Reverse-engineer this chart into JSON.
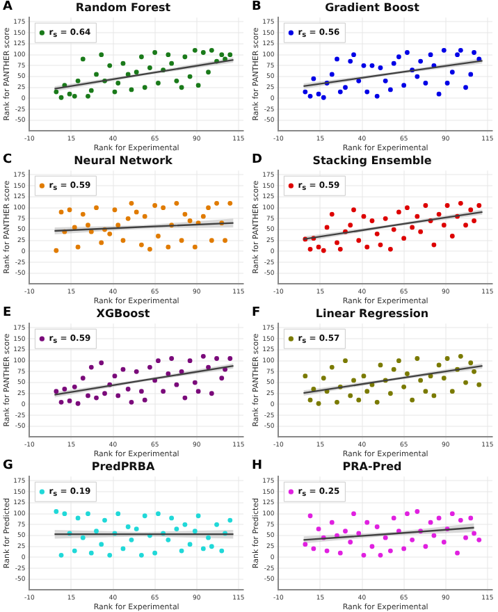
{
  "chart_data": [
    {
      "type": "scatter",
      "title": "Random Forest",
      "annotations": [
        "A"
      ],
      "xlabel": "Rank for Experimental",
      "ylabel": "Rank for PANTHER score",
      "xlim": [
        -10,
        118
      ],
      "ylim": [
        -74,
        185
      ],
      "xticks": [
        -10,
        15,
        40,
        65,
        90,
        115
      ],
      "yticks": [
        -50,
        -25,
        0,
        25,
        50,
        75,
        100,
        125,
        150,
        175
      ],
      "grid": true,
      "legend": "top left",
      "series": [
        {
          "marker": "circle",
          "name": "r$_{s}$ = 0.64",
          "color": "#1a7a1a",
          "x": [
            6,
            9,
            11,
            14,
            17,
            19,
            22,
            25,
            27,
            30,
            33,
            35,
            38,
            41,
            43,
            46,
            49,
            51,
            54,
            57,
            59,
            62,
            65,
            67,
            70,
            73,
            75,
            78,
            81,
            83,
            86,
            89,
            91,
            94,
            97,
            99,
            102,
            105,
            107,
            110
          ],
          "values": [
            15,
            2,
            30,
            10,
            5,
            40,
            90,
            5,
            18,
            55,
            100,
            40,
            75,
            15,
            35,
            80,
            55,
            20,
            60,
            95,
            25,
            70,
            105,
            35,
            65,
            100,
            80,
            40,
            25,
            95,
            50,
            110,
            30,
            105,
            60,
            110,
            85,
            100,
            90,
            100
          ]
        },
        {
          "type": "line",
          "color": "#404040",
          "x": [
            5,
            58,
            112
          ],
          "values": [
            22,
            55,
            88
          ],
          "lower": [
            16,
            52,
            82
          ],
          "upper": [
            28,
            58,
            94
          ]
        }
      ]
    },
    {
      "type": "scatter",
      "title": "Gradient Boost",
      "annotations": [
        "B"
      ],
      "xlabel": "Rank for Experimental",
      "ylabel": "Rank for PANTHER score",
      "xlim": [
        -10,
        118
      ],
      "ylim": [
        -74,
        185
      ],
      "xticks": [
        -10,
        15,
        40,
        65,
        90,
        115
      ],
      "yticks": [
        -50,
        -25,
        0,
        25,
        50,
        75,
        100,
        125,
        150,
        175
      ],
      "grid": true,
      "legend": "top left",
      "series": [
        {
          "marker": "circle",
          "name": "r$_{s}$ = 0.56",
          "color": "#0000e6",
          "x": [
            6,
            9,
            11,
            14,
            17,
            19,
            22,
            25,
            27,
            30,
            33,
            35,
            38,
            41,
            43,
            46,
            49,
            51,
            54,
            57,
            59,
            62,
            65,
            67,
            70,
            73,
            75,
            78,
            81,
            83,
            86,
            89,
            91,
            94,
            97,
            99,
            102,
            105,
            107,
            110
          ],
          "values": [
            15,
            5,
            45,
            10,
            2,
            35,
            55,
            90,
            15,
            25,
            85,
            100,
            40,
            75,
            15,
            75,
            5,
            70,
            40,
            20,
            80,
            95,
            30,
            105,
            65,
            50,
            85,
            35,
            100,
            75,
            10,
            110,
            35,
            60,
            100,
            110,
            25,
            55,
            105,
            90
          ]
        },
        {
          "type": "line",
          "color": "#404040",
          "x": [
            5,
            58,
            112
          ],
          "values": [
            28,
            57,
            86
          ],
          "lower": [
            22,
            54,
            80
          ],
          "upper": [
            34,
            60,
            92
          ]
        }
      ]
    },
    {
      "type": "scatter",
      "title": "Neural Network",
      "annotations": [
        "C"
      ],
      "xlabel": "Rank for Experimental",
      "ylabel": "Rank for PANTHER score",
      "xlim": [
        -10,
        118
      ],
      "ylim": [
        -74,
        185
      ],
      "xticks": [
        -10,
        15,
        40,
        65,
        90,
        115
      ],
      "yticks": [
        -50,
        -25,
        0,
        25,
        50,
        75,
        100,
        125,
        150,
        175
      ],
      "grid": true,
      "legend": "top left",
      "series": [
        {
          "marker": "circle",
          "name": "r$_{s}$ = 0.59",
          "color": "#e07b00",
          "x": [
            6,
            9,
            11,
            14,
            17,
            19,
            22,
            25,
            27,
            30,
            33,
            35,
            38,
            41,
            43,
            46,
            49,
            51,
            54,
            57,
            59,
            62,
            65,
            67,
            70,
            73,
            75,
            78,
            81,
            83,
            86,
            89,
            91,
            94,
            97,
            99,
            102,
            105,
            107,
            110
          ],
          "values": [
            2,
            90,
            45,
            95,
            55,
            10,
            85,
            60,
            45,
            100,
            20,
            50,
            40,
            95,
            60,
            25,
            75,
            110,
            90,
            15,
            80,
            5,
            105,
            35,
            100,
            10,
            60,
            110,
            25,
            85,
            70,
            10,
            65,
            80,
            100,
            25,
            110,
            65,
            25,
            110
          ]
        },
        {
          "type": "line",
          "color": "#404040",
          "x": [
            5,
            58,
            112
          ],
          "values": [
            47,
            56,
            65
          ],
          "lower": [
            39,
            52,
            55
          ],
          "upper": [
            55,
            60,
            75
          ]
        }
      ]
    },
    {
      "type": "scatter",
      "title": "Stacking Ensemble",
      "annotations": [
        "D"
      ],
      "xlabel": "Rank for Experimental",
      "ylabel": "Rank for PANTHER score",
      "xlim": [
        -10,
        118
      ],
      "ylim": [
        -74,
        185
      ],
      "xticks": [
        -10,
        15,
        40,
        65,
        90,
        115
      ],
      "yticks": [
        -50,
        -25,
        0,
        25,
        50,
        75,
        100,
        125,
        150,
        175
      ],
      "grid": true,
      "legend": "top left",
      "series": [
        {
          "marker": "circle",
          "name": "r$_{s}$ = 0.59",
          "color": "#dd0000",
          "x": [
            6,
            9,
            11,
            14,
            17,
            19,
            22,
            25,
            27,
            30,
            33,
            35,
            38,
            41,
            43,
            46,
            49,
            51,
            54,
            57,
            59,
            62,
            65,
            67,
            70,
            73,
            75,
            78,
            81,
            83,
            86,
            89,
            91,
            94,
            97,
            99,
            102,
            105,
            107,
            110
          ],
          "values": [
            28,
            5,
            30,
            10,
            2,
            55,
            85,
            20,
            5,
            45,
            60,
            95,
            25,
            80,
            10,
            70,
            40,
            15,
            75,
            5,
            50,
            90,
            30,
            100,
            55,
            80,
            45,
            105,
            70,
            15,
            85,
            60,
            105,
            35,
            80,
            110,
            60,
            95,
            70,
            105
          ]
        },
        {
          "type": "line",
          "color": "#404040",
          "x": [
            5,
            58,
            112
          ],
          "values": [
            28,
            59,
            90
          ],
          "lower": [
            22,
            56,
            84
          ],
          "upper": [
            34,
            62,
            96
          ]
        }
      ]
    },
    {
      "type": "scatter",
      "title": "XGBoost",
      "annotations": [
        "E"
      ],
      "xlabel": "Rank for Experimental",
      "ylabel": "Rank for PANTHER score",
      "xlim": [
        -10,
        118
      ],
      "ylim": [
        -74,
        185
      ],
      "xticks": [
        -10,
        15,
        40,
        65,
        90,
        115
      ],
      "yticks": [
        -50,
        -25,
        0,
        25,
        50,
        75,
        100,
        125,
        150,
        175
      ],
      "grid": true,
      "legend": "top left",
      "series": [
        {
          "marker": "circle",
          "name": "r$_{s}$ = 0.59",
          "color": "#7a0a7a",
          "x": [
            6,
            9,
            11,
            14,
            17,
            19,
            22,
            25,
            27,
            30,
            33,
            35,
            38,
            41,
            43,
            46,
            49,
            51,
            54,
            57,
            59,
            62,
            65,
            67,
            70,
            73,
            75,
            78,
            81,
            83,
            86,
            89,
            91,
            94,
            97,
            99,
            102,
            105,
            107,
            110
          ],
          "values": [
            30,
            5,
            35,
            8,
            40,
            2,
            60,
            20,
            85,
            15,
            95,
            25,
            45,
            65,
            20,
            80,
            35,
            5,
            75,
            30,
            10,
            85,
            55,
            100,
            30,
            70,
            105,
            45,
            75,
            15,
            100,
            50,
            30,
            110,
            85,
            25,
            105,
            60,
            80,
            105
          ]
        },
        {
          "type": "line",
          "color": "#404040",
          "x": [
            5,
            58,
            112
          ],
          "values": [
            22,
            55,
            88
          ],
          "lower": [
            16,
            52,
            82
          ],
          "upper": [
            28,
            58,
            94
          ]
        }
      ]
    },
    {
      "type": "scatter",
      "title": "Linear Regression",
      "annotations": [
        "F"
      ],
      "xlabel": "Rank for Experimental",
      "ylabel": "Rank for PANTHER score",
      "xlim": [
        -10,
        118
      ],
      "ylim": [
        -74,
        185
      ],
      "xticks": [
        -10,
        15,
        40,
        65,
        90,
        115
      ],
      "yticks": [
        -50,
        -25,
        0,
        25,
        50,
        75,
        100,
        125,
        150,
        175
      ],
      "grid": true,
      "legend": "top left",
      "series": [
        {
          "marker": "circle",
          "name": "r$_{s}$ = 0.57",
          "color": "#7a7a00",
          "x": [
            6,
            9,
            11,
            14,
            17,
            19,
            22,
            25,
            27,
            30,
            33,
            35,
            38,
            41,
            43,
            46,
            49,
            51,
            54,
            57,
            59,
            62,
            65,
            67,
            70,
            73,
            75,
            78,
            81,
            83,
            86,
            89,
            91,
            94,
            97,
            99,
            102,
            105,
            107,
            110
          ],
          "values": [
            65,
            10,
            35,
            2,
            60,
            30,
            85,
            5,
            40,
            100,
            20,
            55,
            10,
            65,
            30,
            45,
            5,
            90,
            55,
            25,
            80,
            100,
            40,
            70,
            10,
            105,
            55,
            30,
            65,
            20,
            90,
            60,
            105,
            30,
            80,
            110,
            50,
            95,
            75,
            45
          ]
        },
        {
          "type": "line",
          "color": "#404040",
          "x": [
            5,
            58,
            112
          ],
          "values": [
            26,
            57,
            88
          ],
          "lower": [
            20,
            54,
            82
          ],
          "upper": [
            32,
            60,
            94
          ]
        }
      ]
    },
    {
      "type": "scatter",
      "title": "PredPRBA",
      "annotations": [
        "G"
      ],
      "xlabel": "Rank for Experimental",
      "ylabel": "Rank for Predicted",
      "xlim": [
        -10,
        118
      ],
      "ylim": [
        -74,
        185
      ],
      "xticks": [
        -10,
        15,
        40,
        65,
        90,
        115
      ],
      "yticks": [
        -50,
        -25,
        0,
        25,
        50,
        75,
        100,
        125,
        150,
        175
      ],
      "grid": true,
      "legend": "top left",
      "series": [
        {
          "marker": "circle",
          "name": "r$_{s}$ = 0.19",
          "color": "#20d8d8",
          "x": [
            6,
            9,
            11,
            14,
            17,
            19,
            22,
            25,
            27,
            30,
            33,
            35,
            38,
            41,
            43,
            46,
            49,
            51,
            54,
            57,
            59,
            62,
            65,
            67,
            70,
            73,
            75,
            78,
            81,
            83,
            86,
            89,
            91,
            94,
            97,
            99,
            102,
            105,
            107,
            110
          ],
          "values": [
            105,
            5,
            100,
            55,
            15,
            90,
            45,
            100,
            10,
            60,
            30,
            85,
            5,
            55,
            100,
            20,
            70,
            40,
            65,
            5,
            95,
            50,
            10,
            100,
            55,
            40,
            90,
            65,
            15,
            75,
            30,
            60,
            95,
            20,
            45,
            25,
            75,
            15,
            55,
            85
          ]
        },
        {
          "type": "line",
          "color": "#404040",
          "x": [
            5,
            58,
            112
          ],
          "values": [
            53,
            53,
            53
          ],
          "lower": [
            43,
            48,
            43
          ],
          "upper": [
            63,
            58,
            63
          ]
        }
      ]
    },
    {
      "type": "scatter",
      "title": "PRA-Pred",
      "annotations": [
        "H"
      ],
      "xlabel": "Rank for Experimental",
      "ylabel": "Rank for Predicted",
      "xlim": [
        -10,
        118
      ],
      "ylim": [
        -74,
        185
      ],
      "xticks": [
        -10,
        15,
        40,
        65,
        90,
        115
      ],
      "yticks": [
        -50,
        -25,
        0,
        25,
        50,
        75,
        100,
        125,
        150,
        175
      ],
      "grid": true,
      "legend": "top left",
      "series": [
        {
          "marker": "circle",
          "name": "r$_{s}$ = 0.25",
          "color": "#e020e0",
          "x": [
            6,
            9,
            11,
            14,
            17,
            19,
            22,
            25,
            27,
            30,
            33,
            35,
            38,
            41,
            43,
            46,
            49,
            51,
            54,
            57,
            59,
            62,
            65,
            67,
            70,
            73,
            75,
            78,
            81,
            83,
            86,
            89,
            91,
            94,
            97,
            99,
            102,
            105,
            107,
            110
          ],
          "values": [
            30,
            95,
            20,
            65,
            45,
            15,
            80,
            50,
            10,
            60,
            35,
            100,
            55,
            5,
            80,
            25,
            70,
            5,
            45,
            15,
            90,
            60,
            20,
            100,
            40,
            105,
            60,
            25,
            80,
            50,
            90,
            35,
            65,
            100,
            10,
            85,
            45,
            90,
            55,
            40
          ]
        },
        {
          "type": "line",
          "color": "#404040",
          "x": [
            5,
            58,
            107
          ],
          "values": [
            40,
            54,
            68
          ],
          "lower": [
            32,
            50,
            58
          ],
          "upper": [
            48,
            58,
            78
          ]
        }
      ]
    }
  ]
}
